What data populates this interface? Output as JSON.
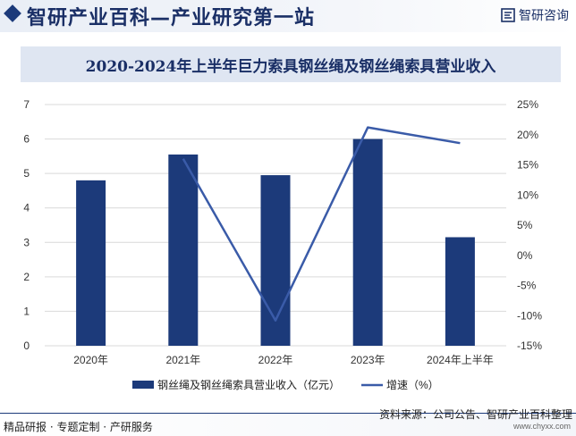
{
  "header": {
    "site_title": "智研产业百科—产业研究第一站",
    "logo_text": "智研咨询"
  },
  "chart_data": {
    "type": "bar",
    "title": "2020-2024年上半年巨力索具钢丝绳及钢丝绳索具营业收入",
    "categories": [
      "2020年",
      "2021年",
      "2022年",
      "2023年",
      "2024年上半年"
    ],
    "series": [
      {
        "name": "钢丝绳及钢丝绳索具营业收入（亿元）",
        "type": "bar",
        "axis": "left",
        "values": [
          4.8,
          5.55,
          4.95,
          6.0,
          3.15
        ]
      },
      {
        "name": "增速（%）",
        "type": "line",
        "axis": "right",
        "values": [
          null,
          16.0,
          -10.8,
          21.2,
          18.6
        ]
      }
    ],
    "y_left": {
      "min": 0,
      "max": 7,
      "ticks": [
        "0",
        "1",
        "2",
        "3",
        "4",
        "5",
        "6",
        "7"
      ]
    },
    "y_right": {
      "min": -15,
      "max": 25,
      "ticks": [
        "-15%",
        "-10%",
        "-5%",
        "0%",
        "5%",
        "10%",
        "15%",
        "20%",
        "25%"
      ]
    },
    "grid": true,
    "legend": "bottom",
    "colors": {
      "bar": "#1c3a7a",
      "line": "#3a5ba8",
      "grid": "#d9d9d9"
    }
  },
  "footer": {
    "tagline": "精品研报 · 专题定制 · 产研服务",
    "source": "资料来源：公司公告、智研产业百科整理",
    "site_url": "www.chyxx.com"
  }
}
